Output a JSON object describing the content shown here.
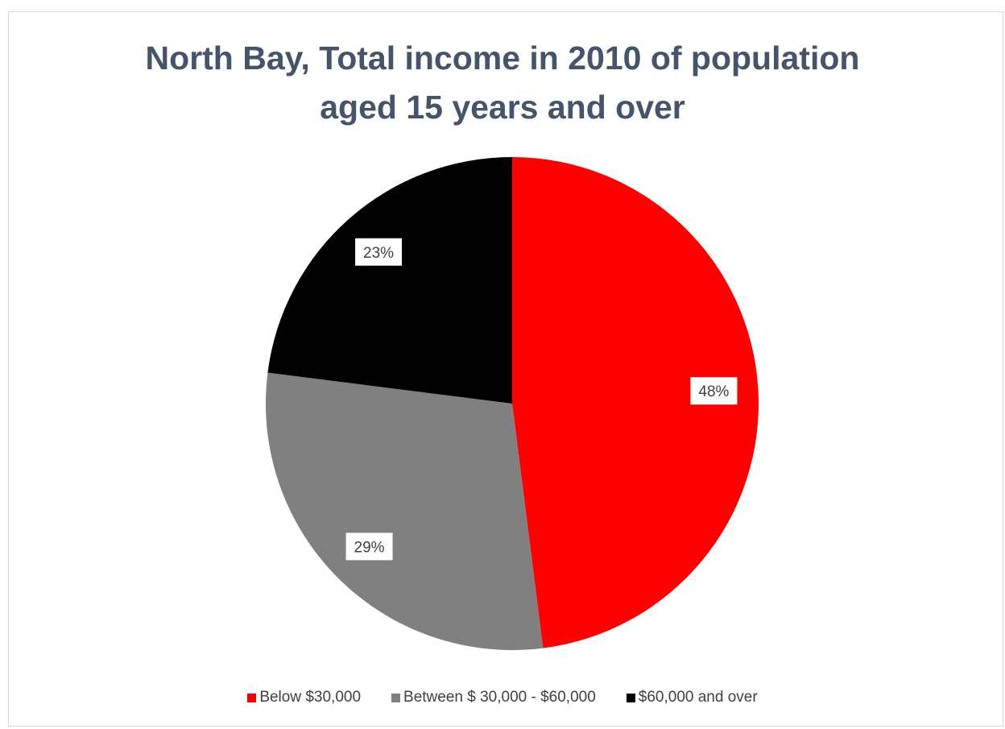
{
  "chart_data": {
    "type": "pie",
    "title": "North Bay, Total income in 2010 of population aged 15 years and over",
    "title_lines": [
      "North Bay, Total income in 2010 of population",
      "aged 15 years and over"
    ],
    "slices": [
      {
        "label": "Below $30,000",
        "value": 48,
        "data_label": "48%",
        "color": "#ff0000"
      },
      {
        "label": "Between $ 30,000 - $60,000",
        "value": 29,
        "data_label": "29%",
        "color": "#808080"
      },
      {
        "label": "$60,000 and over",
        "value": 23,
        "data_label": "23%",
        "color": "#000000"
      }
    ],
    "legend_position": "bottom"
  }
}
